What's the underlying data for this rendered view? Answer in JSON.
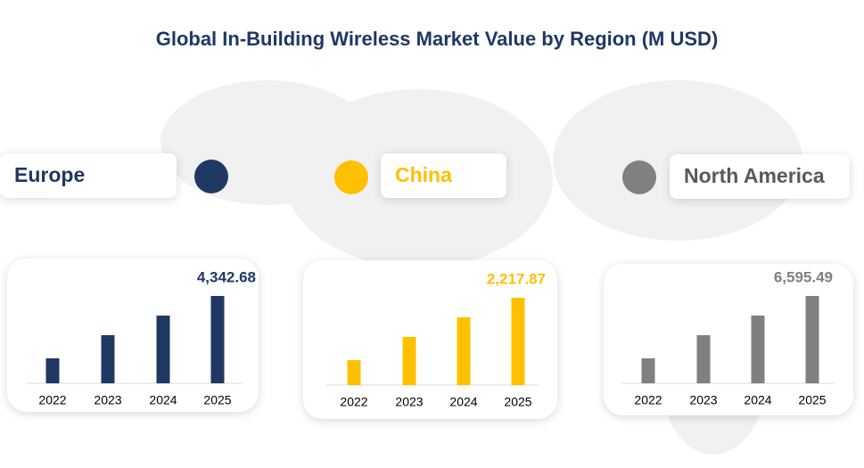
{
  "title": "Global In-Building Wireless Market Value by Region (M USD)",
  "chart_data": [
    {
      "type": "bar",
      "title": "Europe",
      "color": "#1f3864",
      "categories": [
        "2022",
        "2023",
        "2024",
        "2025"
      ],
      "values": [
        1241,
        2393,
        3368,
        4342.68
      ],
      "value_labels": [
        null,
        null,
        null,
        "4,342.68"
      ]
    },
    {
      "type": "bar",
      "title": "China",
      "color": "#ffc000",
      "categories": [
        "2022",
        "2023",
        "2024",
        "2025"
      ],
      "values": [
        634,
        1222,
        1720,
        2217.87
      ],
      "value_labels": [
        null,
        null,
        null,
        "2,217.87"
      ]
    },
    {
      "type": "bar",
      "title": "North America",
      "color": "#808080",
      "categories": [
        "2022",
        "2023",
        "2024",
        "2025"
      ],
      "values": [
        1884,
        3634,
        5115,
        6595.49
      ],
      "value_labels": [
        null,
        null,
        null,
        "6,595.49"
      ]
    }
  ]
}
